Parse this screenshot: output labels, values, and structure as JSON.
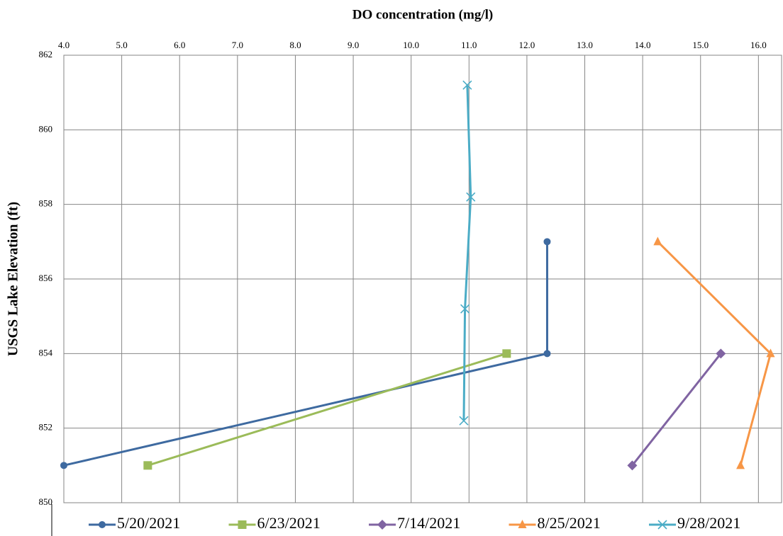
{
  "chart_data": {
    "type": "line",
    "title": "DO concentration (mg/l)",
    "y_label": "USGS Lake Elevation (ft)",
    "xlim": [
      4.0,
      16.4
    ],
    "xticks": [
      {
        "value": 4,
        "label": "4.0"
      },
      {
        "value": 5,
        "label": "5.0"
      },
      {
        "value": 6,
        "label": "6.0"
      },
      {
        "value": 7,
        "label": "7.0"
      },
      {
        "value": 8,
        "label": "8.0"
      },
      {
        "value": 9,
        "label": "9.0"
      },
      {
        "value": 10,
        "label": "10.0"
      },
      {
        "value": 11,
        "label": "11.0"
      },
      {
        "value": 12,
        "label": "12.0"
      },
      {
        "value": 13,
        "label": "13.0"
      },
      {
        "value": 14,
        "label": "14.0"
      },
      {
        "value": 15,
        "label": "15.0"
      },
      {
        "value": 16,
        "label": "16.0"
      }
    ],
    "ylim": [
      850,
      862
    ],
    "yticks": [
      850,
      852,
      854,
      856,
      858,
      860,
      862
    ],
    "grid": true,
    "x_axis_position": "top",
    "legend": "bottom",
    "series": [
      {
        "name": "5/20/2021",
        "color": "#3e6aa0",
        "marker": "circle",
        "x": [
          4.0,
          12.35,
          12.35
        ],
        "values": [
          851,
          854,
          857
        ]
      },
      {
        "name": "6/23/2021",
        "color": "#9bbb59",
        "marker": "square",
        "x": [
          5.45,
          11.65
        ],
        "values": [
          851,
          854
        ]
      },
      {
        "name": "7/14/2021",
        "color": "#8064a2",
        "marker": "diamond",
        "x": [
          13.82,
          15.35
        ],
        "values": [
          851,
          854
        ]
      },
      {
        "name": "8/25/2021",
        "color": "#f79646",
        "marker": "triangle",
        "x": [
          14.26,
          16.21,
          15.69
        ],
        "values": [
          857,
          854,
          851
        ]
      },
      {
        "name": "9/28/2021",
        "color": "#4bacc6",
        "marker": "x",
        "x": [
          10.91,
          10.93,
          11.03,
          10.97
        ],
        "values": [
          852.2,
          855.2,
          858.2,
          861.2
        ]
      }
    ]
  }
}
